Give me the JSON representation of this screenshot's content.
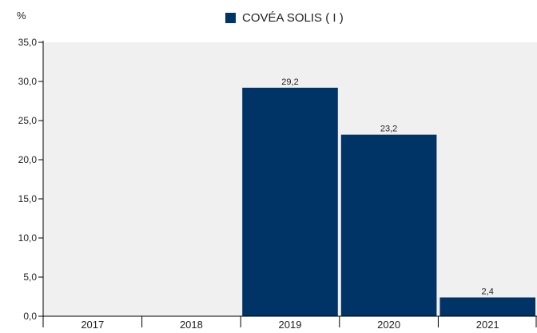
{
  "chart_data": {
    "type": "bar",
    "unit_label": "%",
    "categories": [
      "2017",
      "2018",
      "2019",
      "2020",
      "2021"
    ],
    "series": [
      {
        "name": "COVÉA SOLIS ( I )",
        "values": [
          null,
          null,
          29.2,
          23.2,
          2.4
        ],
        "color": "#003366"
      }
    ],
    "data_labels": [
      "",
      "",
      "29,2",
      "23,2",
      "2,4"
    ],
    "y_ticks": [
      "0,0",
      "5,0",
      "10,0",
      "15,0",
      "20,0",
      "25,0",
      "30,0",
      "35,0"
    ],
    "ylim": [
      0,
      35
    ],
    "y_step": 5,
    "grid": false,
    "plot_background": "#f0f0f0",
    "legend_position": "top-center"
  }
}
